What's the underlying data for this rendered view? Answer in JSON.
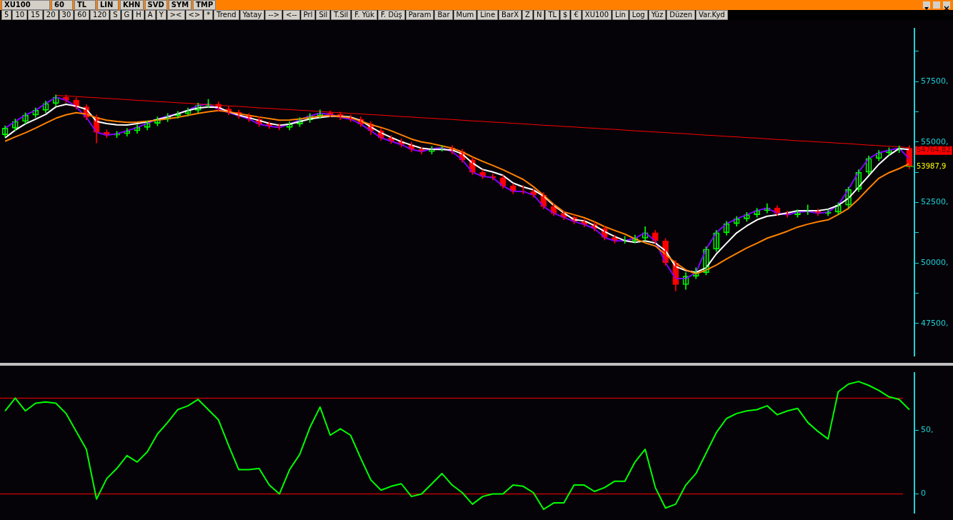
{
  "chart_data": [
    {
      "type": "candlestick",
      "annotations": [
        "XU100",
        "60",
        "TL",
        "LIN",
        "KHN",
        "SVD",
        "SYM",
        "TMP",
        "5",
        "10",
        "15",
        "20",
        "30",
        "60",
        "120",
        "S",
        "G",
        "H",
        "A",
        "Y",
        "><",
        "<>",
        "*",
        "Trend",
        "Yatay",
        "-->",
        "<--",
        "Prl",
        "Sil",
        "T.Sil",
        "F. Yük",
        "F. Düş",
        "Param",
        "Bar",
        "Mum",
        "Line",
        "BarX",
        "Z",
        "N",
        "TL",
        "$",
        "€",
        "XU100",
        "Lin",
        "Log",
        "Yüz",
        "Düzen",
        "Var.Kyd",
        "54764,82",
        "53987,9"
      ],
      "categories": [
        null,
        null,
        null,
        null,
        null,
        null,
        null,
        null,
        null,
        null,
        null,
        null,
        null,
        null,
        null,
        null,
        null,
        null,
        null,
        null,
        null,
        null,
        null,
        null,
        null,
        null,
        null,
        null,
        null,
        null,
        null,
        null,
        null,
        null,
        null,
        null,
        null,
        null,
        null,
        null,
        null,
        null,
        null,
        null,
        null,
        null,
        null,
        null,
        null,
        null,
        null,
        null,
        null,
        null,
        null,
        null,
        null,
        null,
        null,
        null,
        null,
        null,
        null,
        null,
        null,
        null,
        null,
        null,
        null,
        null,
        null,
        null,
        null,
        null,
        null,
        null,
        null,
        null,
        null,
        null,
        null,
        null,
        null,
        null,
        null,
        null,
        null,
        null,
        null,
        null
      ],
      "ohlc": [
        [
          55300,
          55670,
          55200,
          55570
        ],
        [
          55570,
          55950,
          55470,
          55850
        ],
        [
          55850,
          56210,
          55750,
          56110
        ],
        [
          56110,
          56410,
          56010,
          56310
        ],
        [
          56310,
          56690,
          56210,
          56590
        ],
        [
          56590,
          56950,
          56490,
          56850
        ],
        [
          56850,
          56950,
          56630,
          56730
        ],
        [
          56730,
          56830,
          56350,
          56450
        ],
        [
          56450,
          56550,
          55920,
          56020
        ],
        [
          56020,
          56120,
          54960,
          55400
        ],
        [
          55400,
          55500,
          55180,
          55280
        ],
        [
          55280,
          55440,
          55180,
          55340
        ],
        [
          55340,
          55560,
          55240,
          55460
        ],
        [
          55460,
          55700,
          55360,
          55600
        ],
        [
          55600,
          55870,
          55500,
          55770
        ],
        [
          55770,
          56040,
          55670,
          55940
        ],
        [
          55940,
          56180,
          55840,
          56080
        ],
        [
          56080,
          56270,
          55980,
          56170
        ],
        [
          56170,
          56410,
          56070,
          56310
        ],
        [
          56310,
          56610,
          56210,
          56510
        ],
        [
          56510,
          56760,
          56410,
          56560
        ],
        [
          56560,
          56660,
          56260,
          56360
        ],
        [
          56360,
          56460,
          56120,
          56220
        ],
        [
          56220,
          56320,
          55980,
          56080
        ],
        [
          56080,
          56180,
          55840,
          55940
        ],
        [
          55940,
          56040,
          55640,
          55740
        ],
        [
          55740,
          55840,
          55550,
          55650
        ],
        [
          55650,
          55750,
          55500,
          55600
        ],
        [
          55600,
          55840,
          55500,
          55740
        ],
        [
          55740,
          56010,
          55640,
          55910
        ],
        [
          55910,
          56180,
          55810,
          56080
        ],
        [
          56080,
          56330,
          55980,
          56190
        ],
        [
          56190,
          56290,
          56040,
          56140
        ],
        [
          56140,
          56240,
          55920,
          56020
        ],
        [
          56020,
          56120,
          55840,
          55940
        ],
        [
          55940,
          56040,
          55640,
          55740
        ],
        [
          55740,
          55840,
          55300,
          55460
        ],
        [
          55460,
          55560,
          55070,
          55170
        ],
        [
          55170,
          55270,
          54930,
          55030
        ],
        [
          55030,
          55130,
          54790,
          54890
        ],
        [
          54890,
          54990,
          54590,
          54690
        ],
        [
          54690,
          54790,
          54500,
          54600
        ],
        [
          54600,
          54820,
          54500,
          54720
        ],
        [
          54720,
          54860,
          54620,
          54760
        ],
        [
          54760,
          54860,
          54500,
          54600
        ],
        [
          54600,
          54700,
          54160,
          54260
        ],
        [
          54260,
          54360,
          53650,
          53750
        ],
        [
          53750,
          53850,
          53480,
          53580
        ],
        [
          53580,
          53680,
          53420,
          53520
        ],
        [
          53520,
          53620,
          53080,
          53180
        ],
        [
          53180,
          53280,
          52860,
          52960
        ],
        [
          52960,
          53200,
          52850,
          52950
        ],
        [
          52950,
          53050,
          52710,
          52810
        ],
        [
          52810,
          52910,
          52230,
          52330
        ],
        [
          52330,
          52430,
          51950,
          52050
        ],
        [
          52050,
          52150,
          51780,
          51880
        ],
        [
          51880,
          51980,
          51610,
          51710
        ],
        [
          51710,
          51810,
          51490,
          51590
        ],
        [
          51590,
          51690,
          51320,
          51420
        ],
        [
          51420,
          51520,
          50950,
          51050
        ],
        [
          51050,
          51150,
          50810,
          50910
        ],
        [
          50910,
          51100,
          50810,
          50920
        ],
        [
          50920,
          51150,
          50820,
          51020
        ],
        [
          51020,
          51500,
          50920,
          51250
        ],
        [
          51250,
          51350,
          50810,
          50910
        ],
        [
          50910,
          51010,
          49900,
          50000
        ],
        [
          50000,
          50100,
          48840,
          49100
        ],
        [
          49100,
          49600,
          48900,
          49450
        ],
        [
          49450,
          49800,
          49350,
          49600
        ],
        [
          49600,
          50670,
          49500,
          50570
        ],
        [
          50570,
          51350,
          50470,
          51250
        ],
        [
          51250,
          51720,
          51150,
          51620
        ],
        [
          51620,
          51920,
          51520,
          51820
        ],
        [
          51820,
          52090,
          51720,
          51990
        ],
        [
          51990,
          52260,
          51890,
          52160
        ],
        [
          52160,
          52450,
          52060,
          52270
        ],
        [
          52270,
          52370,
          51950,
          52050
        ],
        [
          52050,
          52150,
          51890,
          51990
        ],
        [
          51990,
          52200,
          51890,
          52100
        ],
        [
          52100,
          52400,
          52000,
          52130
        ],
        [
          52130,
          52230,
          51950,
          52050
        ],
        [
          52050,
          52200,
          51950,
          52100
        ],
        [
          52100,
          52490,
          52000,
          52390
        ],
        [
          52390,
          53140,
          52290,
          53040
        ],
        [
          53040,
          53850,
          52940,
          53750
        ],
        [
          53750,
          54420,
          53650,
          54320
        ],
        [
          54320,
          54650,
          54220,
          54550
        ],
        [
          54550,
          54760,
          54450,
          54660
        ],
        [
          54660,
          54840,
          54560,
          54740
        ],
        [
          54740,
          54840,
          53890,
          53988
        ]
      ],
      "colors": [
        "#00ff00",
        "#00ff00",
        "#00ff00",
        "#00ff00",
        "#00ff00",
        "#00ff00",
        "#ff0000",
        "#ff0000",
        "#ff0000",
        "#ff0000",
        "#ff0000",
        "#00ff00",
        "#00ff00",
        "#00ff00",
        "#00ff00",
        "#00ff00",
        "#00ff00",
        "#00ff00",
        "#00ff00",
        "#00ff00",
        "#00ff00",
        "#ff0000",
        "#ff0000",
        "#ff0000",
        "#ff0000",
        "#ff0000",
        "#ff0000",
        "#ff0000",
        "#00ff00",
        "#00ff00",
        "#00ff00",
        "#00ff00",
        "#ff0000",
        "#ff0000",
        "#ff0000",
        "#ff0000",
        "#ff0000",
        "#ff0000",
        "#ff0000",
        "#ff0000",
        "#ff0000",
        "#ff0000",
        "#00ff00",
        "#00ff00",
        "#ff0000",
        "#ff0000",
        "#ff0000",
        "#ff0000",
        "#ff0000",
        "#ff0000",
        "#ff0000",
        "#ff0000",
        "#ff0000",
        "#ff0000",
        "#ff0000",
        "#ff0000",
        "#ff0000",
        "#ff0000",
        "#ff0000",
        "#ff0000",
        "#ff0000",
        "#00ff00",
        "#00ff00",
        "#00ff00",
        "#ff0000",
        "#ff0000",
        "#ff0000",
        "#00ff00",
        "#00ff00",
        "#00ff00",
        "#00ff00",
        "#00ff00",
        "#00ff00",
        "#00ff00",
        "#00ff00",
        "#00ff00",
        "#ff0000",
        "#ff0000",
        "#00ff00",
        "#00ff00",
        "#ff0000",
        "#00ff00",
        "#00ff00",
        "#00ff00",
        "#00ff00",
        "#00ff00",
        "#00ff00",
        "#00ff00",
        "#00ff00",
        "#ff0000"
      ],
      "series": [
        {
          "type": "line",
          "color": "#ff0000",
          "values": [
            null,
            null,
            null,
            null,
            null,
            56930,
            56900,
            56880,
            56850,
            56830,
            56800,
            56780,
            56750,
            56720,
            56700,
            56670,
            56650,
            56620,
            56600,
            56570,
            56540,
            56520,
            56490,
            56470,
            56440,
            56410,
            56390,
            56360,
            56340,
            56310,
            56290,
            56260,
            56230,
            56210,
            56180,
            56160,
            56130,
            56110,
            56080,
            56050,
            56030,
            56000,
            55980,
            55950,
            55930,
            55900,
            55870,
            55850,
            55820,
            55800,
            55770,
            55750,
            55720,
            55690,
            55670,
            55640,
            55620,
            55590,
            55570,
            55540,
            55520,
            55490,
            55460,
            55440,
            55410,
            55390,
            55360,
            55340,
            55310,
            55280,
            55260,
            55230,
            55210,
            55180,
            55160,
            55130,
            55100,
            55080,
            55050,
            55030,
            55000,
            54980,
            54950,
            54930,
            54900,
            54870,
            54850,
            54820,
            54800,
            54760
          ]
        },
        {
          "type": "line",
          "color": "#ff8000",
          "values": [
            55030,
            55210,
            55380,
            55570,
            55780,
            55980,
            56120,
            56210,
            56150,
            56000,
            55900,
            55850,
            55810,
            55820,
            55860,
            55900,
            55960,
            56020,
            56100,
            56180,
            56250,
            56300,
            56250,
            56170,
            56100,
            56030,
            55970,
            55900,
            55910,
            55950,
            56010,
            56070,
            56090,
            56050,
            56000,
            55860,
            55720,
            55600,
            55460,
            55290,
            55120,
            55000,
            54930,
            54840,
            54740,
            54590,
            54380,
            54200,
            54030,
            53850,
            53650,
            53450,
            53150,
            52800,
            52420,
            52110,
            51990,
            51870,
            51700,
            51500,
            51340,
            51190,
            50990,
            50830,
            50700,
            50350,
            50000,
            49710,
            49550,
            49700,
            49910,
            50160,
            50390,
            50620,
            50810,
            51020,
            51160,
            51310,
            51480,
            51600,
            51700,
            51780,
            52000,
            52250,
            52640,
            53080,
            53500,
            53730,
            53900,
            54100
          ]
        },
        {
          "type": "line",
          "color": "#ffffff",
          "values": [
            55170,
            55490,
            55750,
            55940,
            56140,
            56450,
            56560,
            56480,
            56350,
            55850,
            55760,
            55710,
            55700,
            55760,
            55830,
            55930,
            56030,
            56170,
            56300,
            56400,
            56450,
            56430,
            56250,
            56110,
            56000,
            55890,
            55770,
            55690,
            55740,
            55840,
            55950,
            56010,
            56060,
            56060,
            56030,
            55890,
            55620,
            55380,
            55190,
            55010,
            54870,
            54740,
            54700,
            54690,
            54670,
            54500,
            54130,
            53860,
            53760,
            53620,
            53300,
            53140,
            53020,
            52760,
            52380,
            52060,
            51790,
            51740,
            51550,
            51300,
            51090,
            50920,
            50850,
            50910,
            50820,
            50500,
            49850,
            49680,
            49610,
            49800,
            50370,
            50810,
            51240,
            51530,
            51780,
            51930,
            51990,
            52070,
            52160,
            52160,
            52160,
            52220,
            52380,
            52670,
            53130,
            53600,
            54080,
            54450,
            54730,
            54690
          ]
        },
        {
          "type": "line",
          "color": "#8000ff",
          "values": [
            55570,
            55850,
            56110,
            56310,
            56590,
            56850,
            56730,
            56450,
            56020,
            55400,
            55280,
            55340,
            55460,
            55600,
            55770,
            55940,
            56080,
            56170,
            56310,
            56510,
            56560,
            56360,
            56220,
            56080,
            55940,
            55740,
            55650,
            55600,
            55740,
            55910,
            56080,
            56190,
            56140,
            56020,
            55940,
            55740,
            55460,
            55170,
            55030,
            54890,
            54690,
            54600,
            54720,
            54760,
            54600,
            54260,
            53750,
            53580,
            53520,
            53180,
            52960,
            52950,
            52810,
            52330,
            52050,
            51880,
            51710,
            51590,
            51420,
            51050,
            50910,
            50920,
            51020,
            51250,
            50910,
            50000,
            49350,
            49350,
            49600,
            50570,
            51250,
            51620,
            51820,
            51990,
            52160,
            52270,
            52050,
            51990,
            52100,
            52130,
            52050,
            52100,
            52390,
            53040,
            53750,
            54320,
            54550,
            54660,
            54740,
            54300
          ]
        }
      ],
      "ylim": [
        46150,
        59700
      ],
      "yticks": [
        {
          "value": 47500,
          "label": "47500,"
        },
        {
          "value": 48750,
          "label": null
        },
        {
          "value": 50000,
          "label": "50000,"
        },
        {
          "value": 51250,
          "label": null
        },
        {
          "value": 52500,
          "label": "52500,"
        },
        {
          "value": 53750,
          "label": null
        },
        {
          "value": 55000,
          "label": "55000,"
        },
        {
          "value": 56250,
          "label": null
        },
        {
          "value": 57500,
          "label": "57500,"
        },
        {
          "value": 58750,
          "label": null
        }
      ],
      "grid": false,
      "legend": false,
      "marker": "none"
    },
    {
      "type": "line",
      "categories": [
        null,
        null,
        null,
        null,
        null,
        null,
        null,
        null,
        null,
        null,
        null,
        null,
        null,
        null,
        null,
        null,
        null,
        null,
        null,
        null,
        null,
        null,
        null,
        null,
        null,
        null,
        null,
        null,
        null,
        null,
        null,
        null,
        null,
        null,
        null,
        null,
        null,
        null,
        null,
        null,
        null,
        null,
        null,
        null,
        null,
        null,
        null,
        null,
        null,
        null,
        null,
        null,
        null,
        null,
        null,
        null,
        null,
        null,
        null,
        null,
        null,
        null,
        null,
        null,
        null,
        null,
        null,
        null,
        null,
        null,
        null,
        null,
        null,
        null,
        null,
        null,
        null,
        null,
        null,
        null,
        null,
        null,
        null,
        null,
        null,
        null,
        null,
        null,
        null,
        null
      ],
      "series": [
        {
          "type": "line",
          "color": "#00ff00",
          "values": [
            65,
            75,
            65,
            71,
            72,
            71,
            63,
            49,
            35,
            -4,
            12,
            20,
            30,
            25,
            33,
            47,
            56,
            66,
            69,
            74,
            66,
            58,
            38,
            19,
            19,
            20,
            7,
            0,
            19,
            31,
            52,
            68,
            46,
            51,
            46,
            28,
            11,
            3,
            6,
            8,
            -2,
            0,
            8,
            16,
            7,
            1,
            -8,
            -2,
            0,
            0,
            7,
            6,
            1,
            -12,
            -7,
            -7,
            7,
            7,
            2,
            5,
            10,
            10,
            25,
            35,
            5,
            -11,
            -8,
            7,
            16,
            32,
            48,
            59,
            63,
            65,
            66,
            69,
            62,
            65,
            67,
            56,
            49,
            43,
            80,
            86,
            88,
            85,
            81,
            76,
            74,
            66
          ]
        }
      ],
      "ylim": [
        -15,
        95
      ],
      "yticks": [
        {
          "value": 50,
          "label": "50,"
        },
        {
          "value": 0,
          "label": "0"
        }
      ],
      "ref_lines": [
        {
          "axis": "y",
          "value": 75,
          "color": "#ff0000"
        },
        {
          "axis": "y",
          "value": 0,
          "color": "#ff0000"
        }
      ],
      "grid": false,
      "legend": false,
      "marker": "none"
    }
  ]
}
